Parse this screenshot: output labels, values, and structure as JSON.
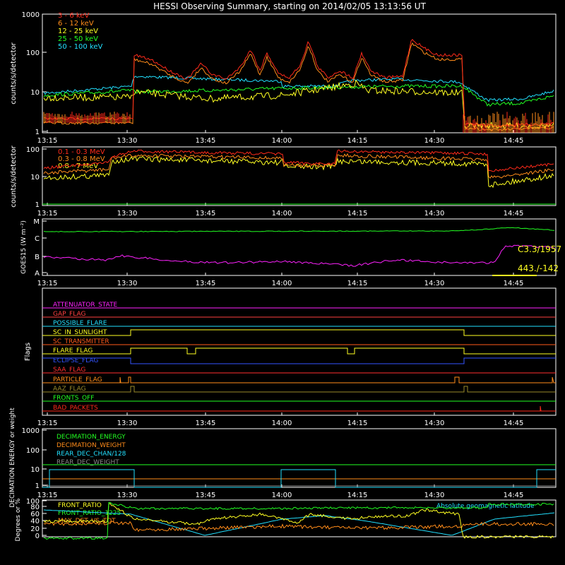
{
  "title": "HESSI Observing Summary, starting on 2014/02/05 13:13:56 UT",
  "time_ticks": [
    "13:15",
    "13:30",
    "13:45",
    "14:00",
    "14:15",
    "14:30",
    "14:45"
  ],
  "chart_data": [
    {
      "id": "lightcurves-low",
      "type": "line",
      "ylabel": "counts/s/detector",
      "yscale": "log",
      "ylim": [
        1,
        1000
      ],
      "yticks": [
        "1",
        "10",
        "100",
        "1000"
      ],
      "series": [
        {
          "name": "3 - 6 keV",
          "color": "#ff2a1a"
        },
        {
          "name": "6 - 12 keV",
          "color": "#ff8c1a"
        },
        {
          "name": "12 - 25 keV",
          "color": "#ffff22"
        },
        {
          "name": "25 - 50 keV",
          "color": "#22ff22"
        },
        {
          "name": "50 - 100 keV",
          "color": "#22e0ff"
        }
      ]
    },
    {
      "id": "lightcurves-high",
      "type": "line",
      "ylabel": "counts/s/detector",
      "yscale": "log",
      "ylim": [
        1,
        100
      ],
      "yticks": [
        "1",
        "10",
        "100"
      ],
      "series": [
        {
          "name": "0.1 - 0.3 MeV",
          "color": "#ff2a1a"
        },
        {
          "name": "0.3 - 0.8 MeV",
          "color": "#ff8c1a"
        },
        {
          "name": "0.8 - 7 MeV",
          "color": "#ffff22"
        }
      ]
    },
    {
      "id": "goes",
      "type": "line",
      "ylabel": "GOES15 (W m⁻²)",
      "yticks": [
        "A",
        "B",
        "C",
        "M"
      ],
      "annotations": [
        "C3.3/1957",
        "443./-142"
      ]
    },
    {
      "id": "flags",
      "type": "line",
      "ylabel": "Flags",
      "series": [
        {
          "name": "ATTENUATOR_STATE",
          "color": "#ff22ff"
        },
        {
          "name": "GAP_FLAG",
          "color": "#ff4040"
        },
        {
          "name": "POSSIBLE_FLARE",
          "color": "#22e0ff"
        },
        {
          "name": "SC_IN_SUNLIGHT",
          "color": "#ffff22"
        },
        {
          "name": "SC_TRANSMITTER",
          "color": "#ff5a1a"
        },
        {
          "name": "FLARE_FLAG",
          "color": "#ffff22"
        },
        {
          "name": "ECLIPSE_FLAG",
          "color": "#3355ff"
        },
        {
          "name": "SAA_FLAG",
          "color": "#ff3030"
        },
        {
          "name": "PARTICLE_FLAG",
          "color": "#ff8c1a"
        },
        {
          "name": "AAZ_FLAG",
          "color": "#9a8a2a"
        },
        {
          "name": "FRONTS_OFF",
          "color": "#22ff22"
        },
        {
          "name": "BAD_PACKETS",
          "color": "#ff2a1a"
        }
      ]
    },
    {
      "id": "decimation",
      "type": "line",
      "ylabel": "DECIMATION ENERGY or weight",
      "yscale": "log",
      "ylim": [
        1,
        1000
      ],
      "yticks": [
        "1",
        "10",
        "100",
        "1000"
      ],
      "series": [
        {
          "name": "DECIMATION_ENERGY",
          "color": "#22ff22"
        },
        {
          "name": "DECIMATION_WEIGHT",
          "color": "#ff8c1a"
        },
        {
          "name": "REAR_DEC_CHAN/128",
          "color": "#22e0ff"
        },
        {
          "name": "REAR_DEC_WEIGHT",
          "color": "#8a8a8a"
        }
      ]
    },
    {
      "id": "ratios",
      "type": "line",
      "ylabel": "Degrees or %",
      "ylim": [
        0,
        100
      ],
      "yticks": [
        "0",
        "20",
        "40",
        "60",
        "80",
        "100"
      ],
      "series": [
        {
          "name": "FRONT_RATIO",
          "color": "#ffff22"
        },
        {
          "name": "FRONT_RATIO_1225",
          "color": "#22ff22"
        },
        {
          "name": "MAX_DET_VS_TOT",
          "color": "#ff8c1a"
        },
        {
          "name": "Absolute geomagnetic latitude",
          "color": "#22e0ff"
        }
      ]
    }
  ]
}
